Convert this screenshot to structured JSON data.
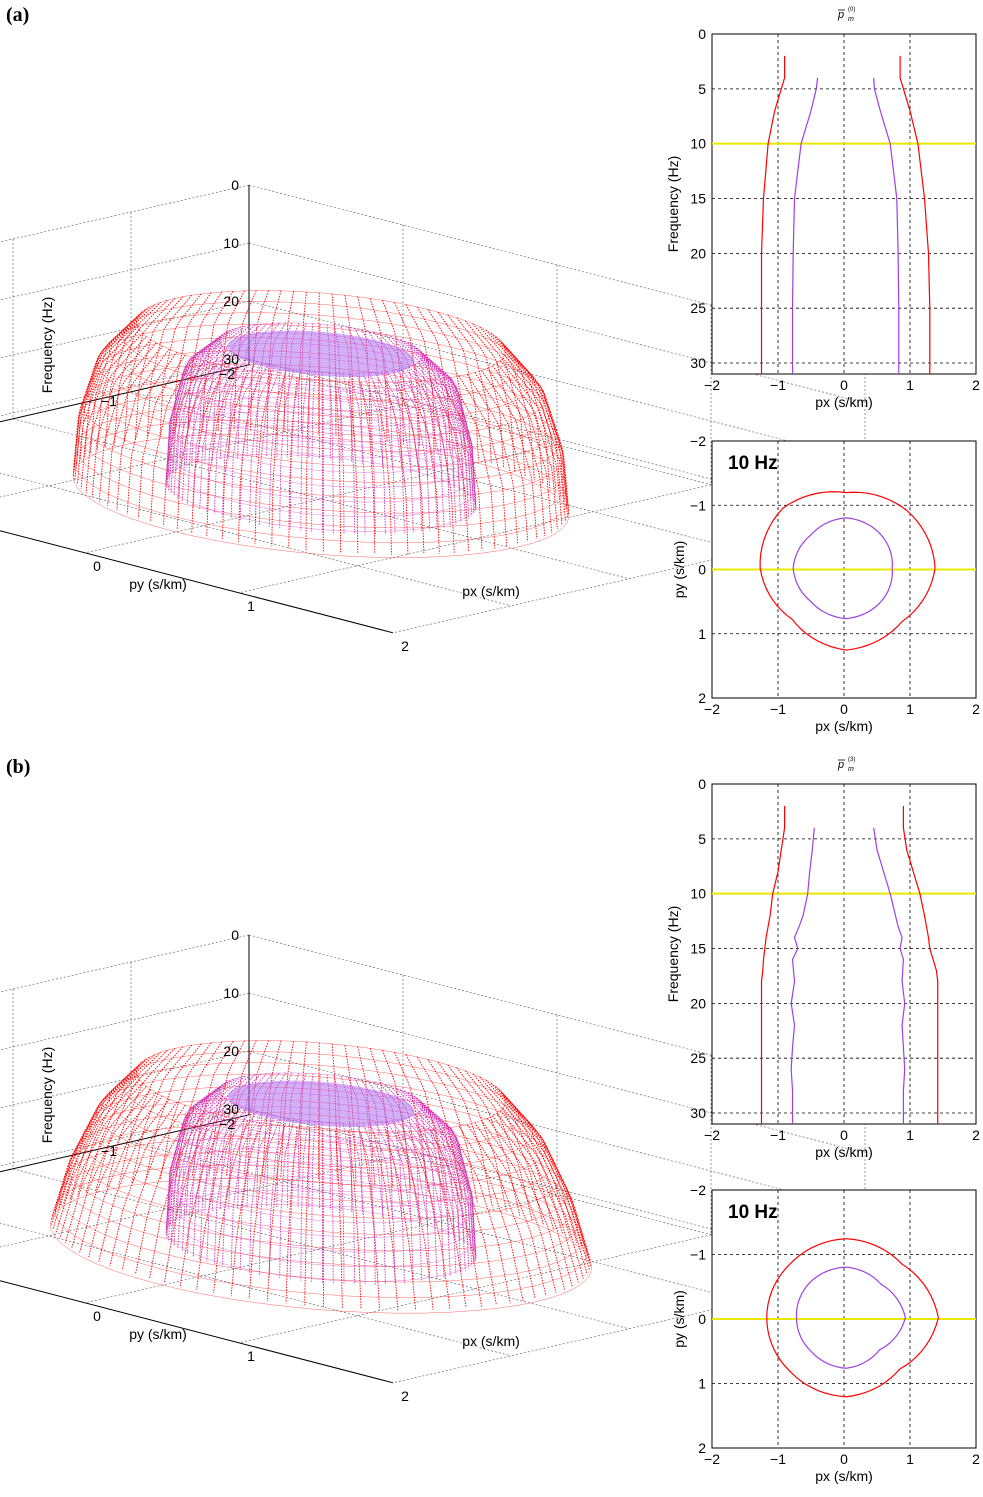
{
  "panels": [
    {
      "label": "(a)",
      "surface3d": {
        "xlabel": "px (s/km)",
        "ylabel": "py (s/km)",
        "zlabel": "Frequency (Hz)",
        "px_ticks": [
          "−2",
          "−1",
          "0",
          "1",
          "2"
        ],
        "py_ticks": [
          "−2",
          "−1",
          "0",
          "1",
          "2"
        ],
        "freq_ticks": [
          "0",
          "10",
          "20",
          "30"
        ]
      },
      "section": {
        "title": "p̄m(0)",
        "xlabel": "px (s/km)",
        "ylabel": "Frequency (Hz)",
        "x_ticks": [
          "−2",
          "−1",
          "0",
          "1",
          "2"
        ],
        "y_ticks": [
          "0",
          "5",
          "10",
          "15",
          "20",
          "25",
          "30"
        ]
      },
      "slice": {
        "annotation": "10 Hz",
        "xlabel": "px (s/km)",
        "ylabel": "py (s/km)",
        "x_ticks": [
          "−2",
          "−1",
          "0",
          "1",
          "2"
        ],
        "y_ticks": [
          "−2",
          "−1",
          "0",
          "1",
          "2"
        ]
      }
    },
    {
      "label": "(b)",
      "surface3d": {
        "xlabel": "px (s/km)",
        "ylabel": "py (s/km)",
        "zlabel": "Frequency (Hz)",
        "px_ticks": [
          "−2",
          "−1",
          "0",
          "1",
          "2"
        ],
        "py_ticks": [
          "−2",
          "−1",
          "0",
          "1",
          "2"
        ],
        "freq_ticks": [
          "0",
          "10",
          "20",
          "30"
        ]
      },
      "section": {
        "title": "p̄m(3)",
        "xlabel": "px (s/km)",
        "ylabel": "Frequency (Hz)",
        "x_ticks": [
          "−2",
          "−1",
          "0",
          "1",
          "2"
        ],
        "y_ticks": [
          "0",
          "5",
          "10",
          "15",
          "20",
          "25",
          "30"
        ]
      },
      "slice": {
        "annotation": "10 Hz",
        "xlabel": "px (s/km)",
        "ylabel": "py (s/km)",
        "x_ticks": [
          "−2",
          "−1",
          "0",
          "1",
          "2"
        ],
        "y_ticks": [
          "−2",
          "−1",
          "0",
          "1",
          "2"
        ]
      }
    }
  ],
  "colors": {
    "outer": "#ff0000",
    "inner": "#a040e0",
    "inner_fill": "#d030b0",
    "cap": "#b070f0",
    "slice_line": "#e8e800",
    "grid": "#000000"
  },
  "chart_data": [
    {
      "type": "line",
      "panel": "(a)",
      "title": "p̄m(0)",
      "xlabel": "px (s/km)",
      "ylabel": "Frequency (Hz)",
      "xlim": [
        -2,
        2
      ],
      "ylim": [
        31,
        0
      ],
      "grid": true,
      "slice_frequency": 10,
      "series": [
        {
          "color": "#ff0000",
          "y": [
            2,
            4,
            5,
            7,
            10,
            15,
            20,
            25,
            31
          ],
          "x_left": [
            -0.9,
            -0.9,
            -0.95,
            -1.05,
            -1.15,
            -1.22,
            -1.25,
            -1.25,
            -1.25
          ],
          "x_right": [
            0.85,
            0.85,
            0.9,
            1.0,
            1.12,
            1.22,
            1.28,
            1.3,
            1.3
          ]
        },
        {
          "color": "#a040e0",
          "y": [
            4,
            5,
            7,
            10,
            15,
            20,
            25,
            31
          ],
          "x_left": [
            -0.4,
            -0.42,
            -0.5,
            -0.65,
            -0.75,
            -0.77,
            -0.78,
            -0.78
          ],
          "x_right": [
            0.45,
            0.46,
            0.55,
            0.7,
            0.8,
            0.82,
            0.83,
            0.83
          ]
        }
      ]
    },
    {
      "type": "line",
      "panel": "(a)",
      "annotation": "10 Hz",
      "xlabel": "px (s/km)",
      "ylabel": "py (s/km)",
      "xlim": [
        -2,
        2
      ],
      "ylim": [
        2,
        -2
      ],
      "grid": true,
      "series": [
        {
          "color": "#ff0000",
          "shape": "closed-contour",
          "radius": [
            1.35,
            1.2,
            1.3,
            1.15,
            1.3,
            1.35,
            1.2,
            1.3
          ]
        },
        {
          "color": "#a040e0",
          "shape": "closed-contour",
          "radius": [
            0.7,
            0.75,
            0.8,
            0.75,
            0.8,
            0.75,
            0.8,
            0.75
          ]
        }
      ]
    },
    {
      "type": "line",
      "panel": "(b)",
      "title": "p̄m(3)",
      "xlabel": "px (s/km)",
      "ylabel": "Frequency (Hz)",
      "xlim": [
        -2,
        2
      ],
      "ylim": [
        31,
        0
      ],
      "grid": true,
      "slice_frequency": 10,
      "series": [
        {
          "color": "#ff0000",
          "y": [
            2,
            4,
            6,
            8,
            10,
            12,
            14,
            15,
            16,
            17,
            18,
            20,
            25,
            31
          ],
          "x_left": [
            -0.9,
            -0.9,
            -0.95,
            -1.0,
            -1.08,
            -1.12,
            -1.18,
            -1.2,
            -1.22,
            -1.23,
            -1.25,
            -1.25,
            -1.25,
            -1.25
          ],
          "x_right": [
            0.9,
            0.9,
            0.95,
            1.05,
            1.15,
            1.22,
            1.28,
            1.3,
            1.35,
            1.4,
            1.42,
            1.42,
            1.42,
            1.42
          ]
        },
        {
          "color": "#a040e0",
          "y": [
            4,
            6,
            8,
            10,
            12,
            13,
            14,
            15,
            16,
            18,
            20,
            22,
            24,
            26,
            28,
            31
          ],
          "x_left": [
            -0.45,
            -0.48,
            -0.52,
            -0.55,
            -0.62,
            -0.68,
            -0.75,
            -0.7,
            -0.78,
            -0.75,
            -0.8,
            -0.75,
            -0.78,
            -0.8,
            -0.78,
            -0.78
          ],
          "x_right": [
            0.45,
            0.5,
            0.6,
            0.7,
            0.78,
            0.82,
            0.88,
            0.85,
            0.9,
            0.88,
            0.92,
            0.88,
            0.9,
            0.92,
            0.9,
            0.9
          ]
        }
      ]
    },
    {
      "type": "line",
      "panel": "(b)",
      "annotation": "10 Hz",
      "xlabel": "px (s/km)",
      "ylabel": "py (s/km)",
      "xlim": [
        -2,
        2
      ],
      "ylim": [
        2,
        -2
      ],
      "grid": true,
      "series": [
        {
          "color": "#ff0000",
          "shape": "closed-contour",
          "radius": [
            1.4,
            1.15,
            1.25,
            1.2,
            1.2,
            1.2,
            1.25,
            1.2
          ]
        },
        {
          "color": "#a040e0",
          "shape": "closed-contour",
          "radius": [
            0.9,
            0.72,
            0.8,
            0.75,
            0.75,
            0.78,
            0.8,
            0.75
          ]
        }
      ]
    }
  ]
}
